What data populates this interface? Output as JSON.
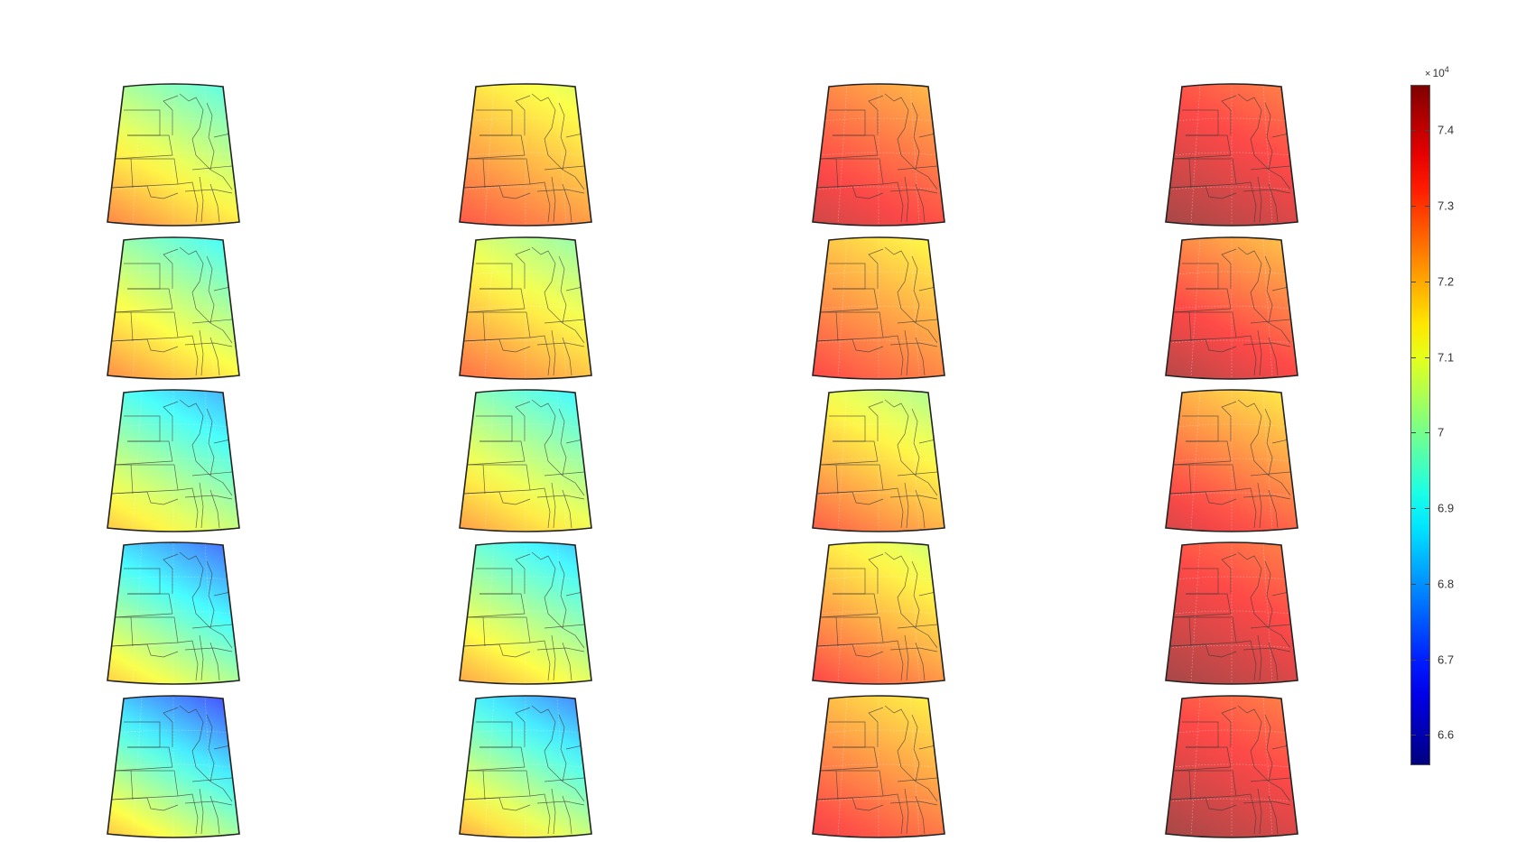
{
  "colorbar": {
    "colormap": "jet",
    "min": 65600,
    "max": 74600,
    "ticks": [
      {
        "value": 66000,
        "label": "6.6"
      },
      {
        "value": 67000,
        "label": "6.7"
      },
      {
        "value": 68000,
        "label": "6.8"
      },
      {
        "value": 69000,
        "label": "6.9"
      },
      {
        "value": 70000,
        "label": "7"
      },
      {
        "value": 71000,
        "label": "7.1"
      },
      {
        "value": 72000,
        "label": "7.2"
      },
      {
        "value": 73000,
        "label": "7.3"
      },
      {
        "value": 74000,
        "label": "7.4"
      }
    ],
    "exponent_base": "10",
    "exponent_power": "4",
    "times_symbol": "×"
  },
  "grid": {
    "rows": 5,
    "cols": 4
  },
  "panels": [
    {
      "row": 0,
      "col": 0,
      "north": 69300,
      "south": 72600
    },
    {
      "row": 0,
      "col": 1,
      "north": 70900,
      "south": 73200
    },
    {
      "row": 0,
      "col": 2,
      "north": 72100,
      "south": 74000
    },
    {
      "row": 0,
      "col": 3,
      "north": 72800,
      "south": 74500
    },
    {
      "row": 1,
      "col": 0,
      "north": 69000,
      "south": 72500
    },
    {
      "row": 1,
      "col": 1,
      "north": 70000,
      "south": 72900
    },
    {
      "row": 1,
      "col": 2,
      "north": 71300,
      "south": 73400
    },
    {
      "row": 1,
      "col": 3,
      "north": 72000,
      "south": 74300
    },
    {
      "row": 2,
      "col": 0,
      "north": 68100,
      "south": 71800
    },
    {
      "row": 2,
      "col": 1,
      "north": 68900,
      "south": 72300
    },
    {
      "row": 2,
      "col": 2,
      "north": 70300,
      "south": 73100
    },
    {
      "row": 2,
      "col": 3,
      "north": 71500,
      "south": 73900
    },
    {
      "row": 3,
      "col": 0,
      "north": 67300,
      "south": 71700
    },
    {
      "row": 3,
      "col": 1,
      "north": 68400,
      "south": 72200
    },
    {
      "row": 3,
      "col": 2,
      "north": 70700,
      "south": 73400
    },
    {
      "row": 3,
      "col": 3,
      "north": 72800,
      "south": 74500
    },
    {
      "row": 4,
      "col": 0,
      "north": 66900,
      "south": 71800
    },
    {
      "row": 4,
      "col": 1,
      "north": 67600,
      "south": 72100
    },
    {
      "row": 4,
      "col": 2,
      "north": 71400,
      "south": 73600
    },
    {
      "row": 4,
      "col": 3,
      "north": 72800,
      "south": 74500
    }
  ]
}
